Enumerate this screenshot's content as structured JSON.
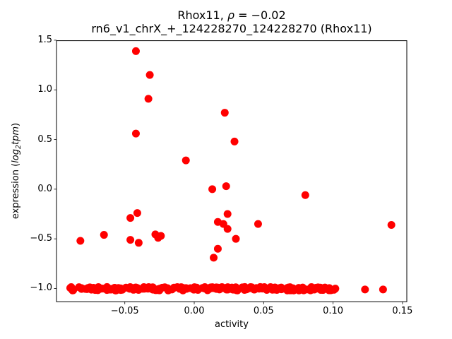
{
  "chart_data": {
    "type": "scatter",
    "title": {
      "prefix": "Rhox11, ",
      "rho": "ρ",
      "rest": " = −0.02"
    },
    "subtitle": "rn6_v1_chrX_+_124228270_124228270 (Rhox11)",
    "xlabel": "activity",
    "ylabel": {
      "prefix": "expression (",
      "word1": "log",
      "sub": "2",
      "word2": "tpm",
      "suffix": ")"
    },
    "axes": {
      "xlim": [
        -0.0992,
        0.1531
      ],
      "ylim": [
        -1.133,
        1.495
      ],
      "grid": false,
      "frame_color": "#000000",
      "background": "#ffffff"
    },
    "xticks": {
      "values": [
        -0.05,
        0.0,
        0.05,
        0.1,
        0.15
      ],
      "labels": [
        "−0.05",
        "0.00",
        "0.05",
        "0.10",
        "0.15"
      ]
    },
    "yticks": {
      "values": [
        1.5,
        1.0,
        0.5,
        0.0,
        -0.5,
        -1.0
      ],
      "labels": [
        "1.5",
        "1.0",
        "0.5",
        "0.0",
        "−0.5",
        "−1.0"
      ]
    },
    "marker": {
      "color": "#ff0000",
      "radius_px": 5.5
    },
    "legend": null,
    "points": [
      [
        -0.042,
        1.39
      ],
      [
        -0.032,
        1.15
      ],
      [
        -0.033,
        0.91
      ],
      [
        0.022,
        0.77
      ],
      [
        -0.042,
        0.56
      ],
      [
        0.029,
        0.48
      ],
      [
        -0.006,
        0.29
      ],
      [
        0.013,
        0.0
      ],
      [
        0.023,
        0.03
      ],
      [
        0.08,
        -0.06
      ],
      [
        -0.041,
        -0.24
      ],
      [
        -0.046,
        -0.29
      ],
      [
        0.024,
        -0.25
      ],
      [
        0.017,
        -0.33
      ],
      [
        0.021,
        -0.35
      ],
      [
        0.024,
        -0.4
      ],
      [
        0.046,
        -0.35
      ],
      [
        0.142,
        -0.36
      ],
      [
        -0.065,
        -0.46
      ],
      [
        -0.082,
        -0.52
      ],
      [
        -0.046,
        -0.51
      ],
      [
        -0.04,
        -0.54
      ],
      [
        -0.028,
        -0.455
      ],
      [
        -0.024,
        -0.47
      ],
      [
        -0.026,
        -0.49
      ],
      [
        0.03,
        -0.5
      ],
      [
        0.017,
        -0.6
      ],
      [
        0.014,
        -0.69
      ],
      [
        0.123,
        -1.01
      ],
      [
        0.136,
        -1.01
      ]
    ],
    "floor_band": {
      "description": "dense row of overlapping points at the expression floor near −1.0",
      "x_min": -0.0894,
      "x_max": 0.1017,
      "y_min": -1.02,
      "y_max": -0.985,
      "count": 240,
      "seed": 7
    }
  }
}
